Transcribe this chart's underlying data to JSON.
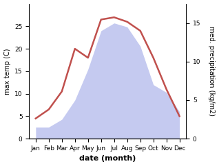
{
  "months": [
    "Jan",
    "Feb",
    "Mar",
    "Apr",
    "May",
    "Jun",
    "Jul",
    "Aug",
    "Sep",
    "Oct",
    "Nov",
    "Dec"
  ],
  "month_indices": [
    1,
    2,
    3,
    4,
    5,
    6,
    7,
    8,
    9,
    10,
    11,
    12
  ],
  "temperature": [
    4.5,
    6.5,
    10.5,
    20.0,
    18.0,
    26.5,
    27.0,
    26.0,
    24.0,
    18.0,
    11.0,
    5.0
  ],
  "precipitation": [
    1.5,
    1.5,
    2.5,
    5.0,
    9.0,
    14.0,
    15.0,
    14.5,
    12.0,
    7.0,
    6.0,
    3.5
  ],
  "temp_color": "#c0504d",
  "precip_fill_color": "#c5caf0",
  "ylim_temp": [
    0,
    30
  ],
  "ylim_precip": [
    0,
    17.5
  ],
  "temp_yticks": [
    0,
    5,
    10,
    15,
    20,
    25
  ],
  "precip_yticks": [
    0,
    5,
    10,
    15
  ],
  "ylabel_left": "max temp (C)",
  "ylabel_right": "med. precipitation (kg/m2)",
  "xlabel": "date (month)",
  "tick_fontsize": 6.5,
  "label_fontsize": 7.5,
  "xlabel_fontsize": 8,
  "background_color": "#ffffff"
}
